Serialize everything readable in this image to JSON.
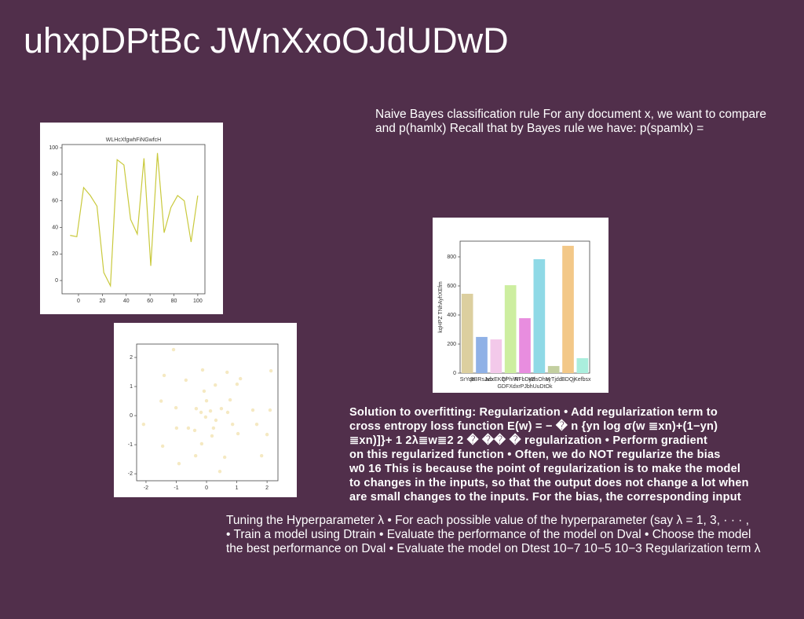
{
  "title": "uhxpDPtBc JWnXxoOJdUDwD",
  "texts": [
    [
      "Naive Bayes classification rule For any document x, we want to compare",
      "and p(hamlx) Recall that by Bayes rule we have: p(spamlx) ="
    ],
    [
      "Solution to overfitting: Regularization • Add regularization term to",
      "cross entropy loss function E(w) = − � n {yn log σ(w ≣xn)+(1−yn)",
      "≣xn)]}+ 1 2λ≣w≣2 2 � �� � regularization • Perform gradient",
      "on this regularized function • Often, we do NOT regularize the bias",
      "w0 16 This is because the point of regularization is to make the model",
      "to changes in the inputs, so that the output does not change a lot when",
      "are small changes to the inputs. For the bias, the corresponding input"
    ],
    [
      "Tuning the Hyperparameter λ • For each possible value of the hyperparameter (say λ = 1, 3, · · · ,",
      "• Train a model using Dtrain • Evaluate the performance of the model on Dval • Choose the model",
      "the best performance on Dval • Evaluate the model on Dtest 10−7 10−5 10−3 Regularization term λ"
    ]
  ],
  "chart_data": [
    {
      "type": "line",
      "title": "WLHcXfgwhFiNGwfcH",
      "color": "#c9c93c",
      "x": [
        -7,
        -1.4,
        4.3,
        9.9,
        15.5,
        21.2,
        26.8,
        32.4,
        38.1,
        43.7,
        49.3,
        54.9,
        60.6,
        66.2,
        71.8,
        77.5,
        83.1,
        88.7,
        94.4,
        100
      ],
      "values": [
        34,
        33,
        70,
        64,
        56,
        6,
        -4,
        91,
        87,
        46,
        35,
        92,
        11,
        96,
        36,
        55,
        64,
        60,
        29,
        64
      ],
      "xlim": [
        -13.8,
        106
      ],
      "ylim": [
        -10,
        102.4
      ],
      "xticks": [
        0,
        20,
        40,
        60,
        80,
        100
      ],
      "yticks": [
        0,
        20,
        40,
        60,
        80,
        100
      ]
    },
    {
      "type": "bar",
      "xlabel": "GDFXdxrPJbhUuDtOk",
      "ylabel": "kqHPZ TNhAyhXEfm",
      "categories": [
        "SrYqe",
        "BBRsJvb",
        "adxEKQf",
        "hPhiW",
        "RFbDyB",
        "KdsOhM",
        "uyTjdd",
        "BDQj",
        "Kefbsx"
      ],
      "values": [
        546,
        249,
        232,
        605,
        378,
        784,
        49,
        876,
        103
      ],
      "colors": [
        "#dccf9f",
        "#8fb1e6",
        "#f3c9ea",
        "#cdeea0",
        "#e88ddf",
        "#8fd9e6",
        "#c3cfa0",
        "#f3c888",
        "#aaeedd"
      ],
      "ylim": [
        0,
        908
      ],
      "yticks": [
        0,
        200,
        400,
        600,
        800
      ]
    },
    {
      "type": "scatter",
      "color": "#f3e3b3",
      "x": [
        -1.09,
        2.13,
        -2.08,
        -1.5,
        -1.4,
        -0.68,
        -0.13,
        0.29,
        1.01,
        0.68,
        1.12,
        -1.01,
        -0.99,
        -0.6,
        -0.34,
        -0.18,
        -0.03,
        0.13,
        0.31,
        0.49,
        0.7,
        0.86,
        1.04,
        1.53,
        1.66,
        2.1,
        2.0,
        -0.16,
        0.18,
        0.6,
        -0.36,
        -0.91,
        -1.45,
        1.82,
        0.44,
        -0.39,
        0,
        -0.08,
        0.78,
        0.23
      ],
      "values": [
        2.27,
        1.54,
        -0.3,
        0.5,
        1.38,
        1.22,
        1.57,
        1.05,
        1.08,
        1.49,
        1.27,
        0.27,
        -0.43,
        -0.43,
        0.24,
        0.11,
        -0.05,
        0.16,
        -0.16,
        0.24,
        0.11,
        -0.3,
        -0.62,
        0.19,
        -0.3,
        0.19,
        -0.65,
        -0.97,
        -0.7,
        -1.43,
        -1.38,
        -1.65,
        -1.05,
        -1.38,
        -1.92,
        -0.51,
        0.51,
        0.84,
        0.54,
        -0.43
      ],
      "xlim": [
        -2.31,
        2.36
      ],
      "ylim": [
        -2.24,
        2.46
      ],
      "xticks": [
        -2,
        -1,
        0,
        1,
        2
      ],
      "yticks": [
        -2,
        -1,
        0,
        1,
        2
      ]
    }
  ]
}
